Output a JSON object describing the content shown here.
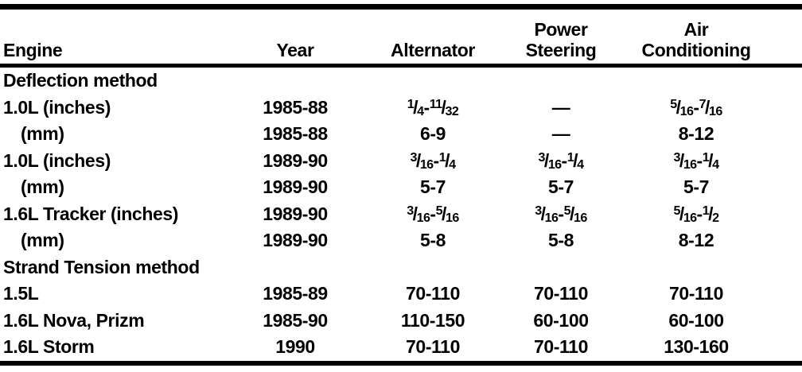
{
  "page": {
    "background": "#ffffff",
    "text_color": "#000000",
    "rule_color": "#000000",
    "description": "Drive belt tension specifications table, scanned manual page"
  },
  "table": {
    "columns": [
      {
        "id": "engine",
        "label": "Engine"
      },
      {
        "id": "year",
        "label": "Year"
      },
      {
        "id": "alternator",
        "label": "Alternator"
      },
      {
        "id": "power_steering",
        "label": "Power\nSteering"
      },
      {
        "id": "air_conditioning",
        "label": "Air\nConditioning"
      }
    ],
    "rows": [
      {
        "type": "section",
        "engine": "Deflection method"
      },
      {
        "type": "data",
        "indent": false,
        "engine": "1.0L (inches)",
        "year": "1985-88",
        "alternator": "1/4-11/32",
        "power_steering": "—",
        "air_conditioning": "5/16-7/16"
      },
      {
        "type": "data",
        "indent": true,
        "engine": "(mm)",
        "year": "1985-88",
        "alternator": "6-9",
        "power_steering": "—",
        "air_conditioning": "8-12"
      },
      {
        "type": "data",
        "indent": false,
        "engine": "1.0L (inches)",
        "year": "1989-90",
        "alternator": "3/16-1/4",
        "power_steering": "3/16-1/4",
        "air_conditioning": "3/16-1/4"
      },
      {
        "type": "data",
        "indent": true,
        "engine": "(mm)",
        "year": "1989-90",
        "alternator": "5-7",
        "power_steering": "5-7",
        "air_conditioning": "5-7"
      },
      {
        "type": "data",
        "indent": false,
        "engine": "1.6L Tracker (inches)",
        "year": "1989-90",
        "alternator": "3/16-5/16",
        "power_steering": "3/16-5/16",
        "air_conditioning": "5/16-1/2"
      },
      {
        "type": "data",
        "indent": true,
        "engine": "(mm)",
        "year": "1989-90",
        "alternator": "5-8",
        "power_steering": "5-8",
        "air_conditioning": "8-12"
      },
      {
        "type": "section",
        "engine": "Strand Tension method"
      },
      {
        "type": "data",
        "indent": false,
        "engine": "1.5L",
        "year": "1985-89",
        "alternator": "70-110",
        "power_steering": "70-110",
        "air_conditioning": "70-110"
      },
      {
        "type": "data",
        "indent": false,
        "engine": "1.6L Nova, Prizm",
        "year": "1985-90",
        "alternator": "110-150",
        "power_steering": "60-100",
        "air_conditioning": "60-100"
      },
      {
        "type": "data",
        "indent": false,
        "engine": "1.6L Storm",
        "year": "1990",
        "alternator": "70-110",
        "power_steering": "70-110",
        "air_conditioning": "130-160"
      }
    ]
  }
}
